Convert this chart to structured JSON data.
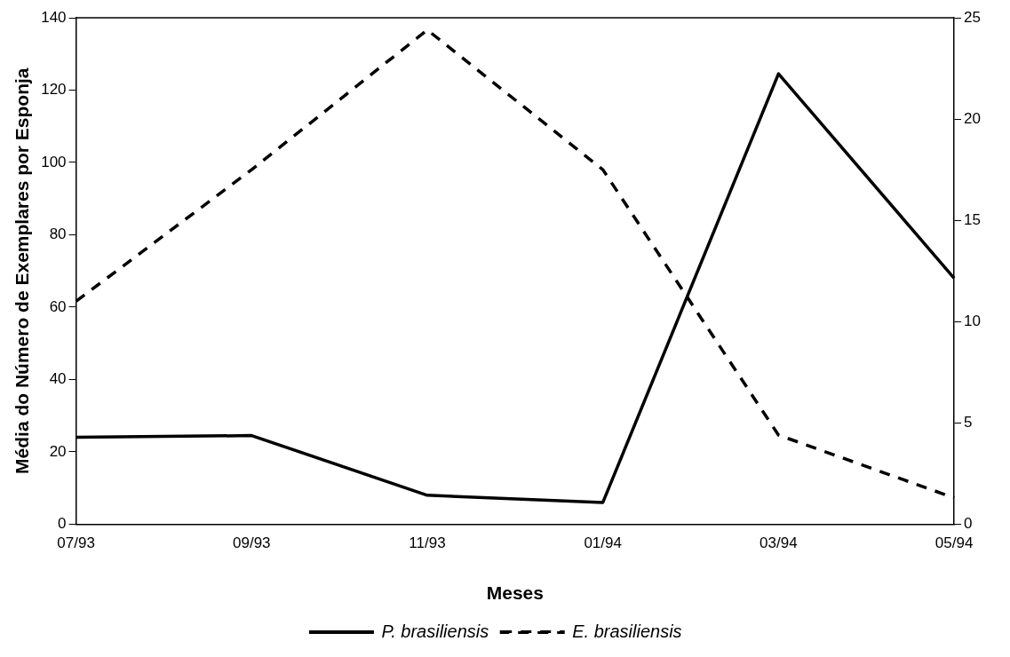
{
  "chart_data": {
    "type": "line",
    "xlabel": "Meses",
    "ylabel": "Média do Número de Exemplares por Esponja",
    "categories": [
      "07/93",
      "09/93",
      "11/93",
      "01/94",
      "03/94",
      "05/94"
    ],
    "series": [
      {
        "name": "P. brasiliensis",
        "color": "#000000",
        "line_style": "solid",
        "values": [
          24,
          24.5,
          8,
          6,
          124.5,
          68
        ]
      },
      {
        "name": "E. brasiliensis",
        "color": "#000000",
        "line_style": "dashed",
        "axis": "y2",
        "values": [
          11,
          17.5,
          24.4,
          17.5,
          4.4,
          1.3
        ]
      }
    ],
    "ylim": [
      0,
      140
    ],
    "yticks": [
      0,
      20,
      40,
      60,
      80,
      100,
      120,
      140
    ],
    "y2lim": [
      0,
      25
    ],
    "y2ticks": [
      0,
      5,
      10,
      15,
      20,
      25
    ],
    "grid": false,
    "legend": "bottom",
    "marker": "none"
  }
}
